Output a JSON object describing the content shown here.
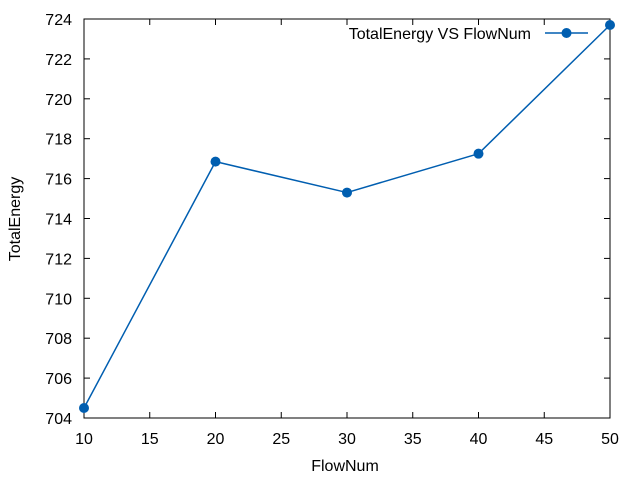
{
  "chart_data": {
    "type": "line",
    "title": "",
    "xlabel": "FlowNum",
    "ylabel": "TotalEnergy",
    "xlim": [
      10,
      50
    ],
    "ylim": [
      704,
      724
    ],
    "xticks": [
      10,
      15,
      20,
      25,
      30,
      35,
      40,
      45,
      50
    ],
    "yticks": [
      704,
      706,
      708,
      710,
      712,
      714,
      716,
      718,
      720,
      722,
      724
    ],
    "grid": false,
    "legend_position": "top-right",
    "series": [
      {
        "name": "TotalEnergy VS FlowNum",
        "color": "#005eb0",
        "marker": "circle",
        "x": [
          10,
          20,
          30,
          40,
          50
        ],
        "y": [
          704.5,
          716.85,
          715.3,
          717.25,
          723.7
        ]
      }
    ]
  }
}
